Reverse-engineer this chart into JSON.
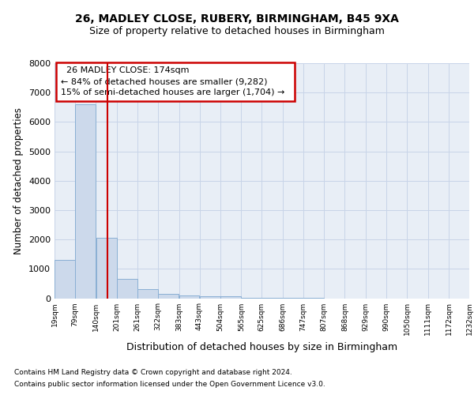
{
  "title1": "26, MADLEY CLOSE, RUBERY, BIRMINGHAM, B45 9XA",
  "title2": "Size of property relative to detached houses in Birmingham",
  "xlabel": "Distribution of detached houses by size in Birmingham",
  "ylabel": "Number of detached properties",
  "footnote1": "Contains HM Land Registry data © Crown copyright and database right 2024.",
  "footnote2": "Contains public sector information licensed under the Open Government Licence v3.0.",
  "annotation_line1": "26 MADLEY CLOSE: 174sqm",
  "annotation_line2": "← 84% of detached houses are smaller (9,282)",
  "annotation_line3": "15% of semi-detached houses are larger (1,704) →",
  "property_size": 174,
  "bar_color": "#ccd9eb",
  "bar_edge_color": "#8aafd4",
  "redline_color": "#cc0000",
  "annotation_box_edge_color": "#cc0000",
  "grid_color": "#c8d4e8",
  "background_color": "#e8eef6",
  "fig_background": "#ffffff",
  "bin_edges": [
    19,
    79,
    140,
    201,
    261,
    322,
    383,
    443,
    504,
    565,
    625,
    686,
    747,
    807,
    868,
    929,
    990,
    1050,
    1111,
    1172,
    1232
  ],
  "bin_labels": [
    "19sqm",
    "79sqm",
    "140sqm",
    "201sqm",
    "261sqm",
    "322sqm",
    "383sqm",
    "443sqm",
    "504sqm",
    "565sqm",
    "625sqm",
    "686sqm",
    "747sqm",
    "807sqm",
    "868sqm",
    "929sqm",
    "990sqm",
    "1050sqm",
    "1111sqm",
    "1172sqm",
    "1232sqm"
  ],
  "bar_heights": [
    1300,
    6600,
    2050,
    650,
    300,
    150,
    100,
    80,
    80,
    5,
    3,
    1,
    1,
    0,
    0,
    0,
    0,
    0,
    0,
    0
  ],
  "ylim": [
    0,
    8000
  ],
  "yticks": [
    0,
    1000,
    2000,
    3000,
    4000,
    5000,
    6000,
    7000,
    8000
  ]
}
